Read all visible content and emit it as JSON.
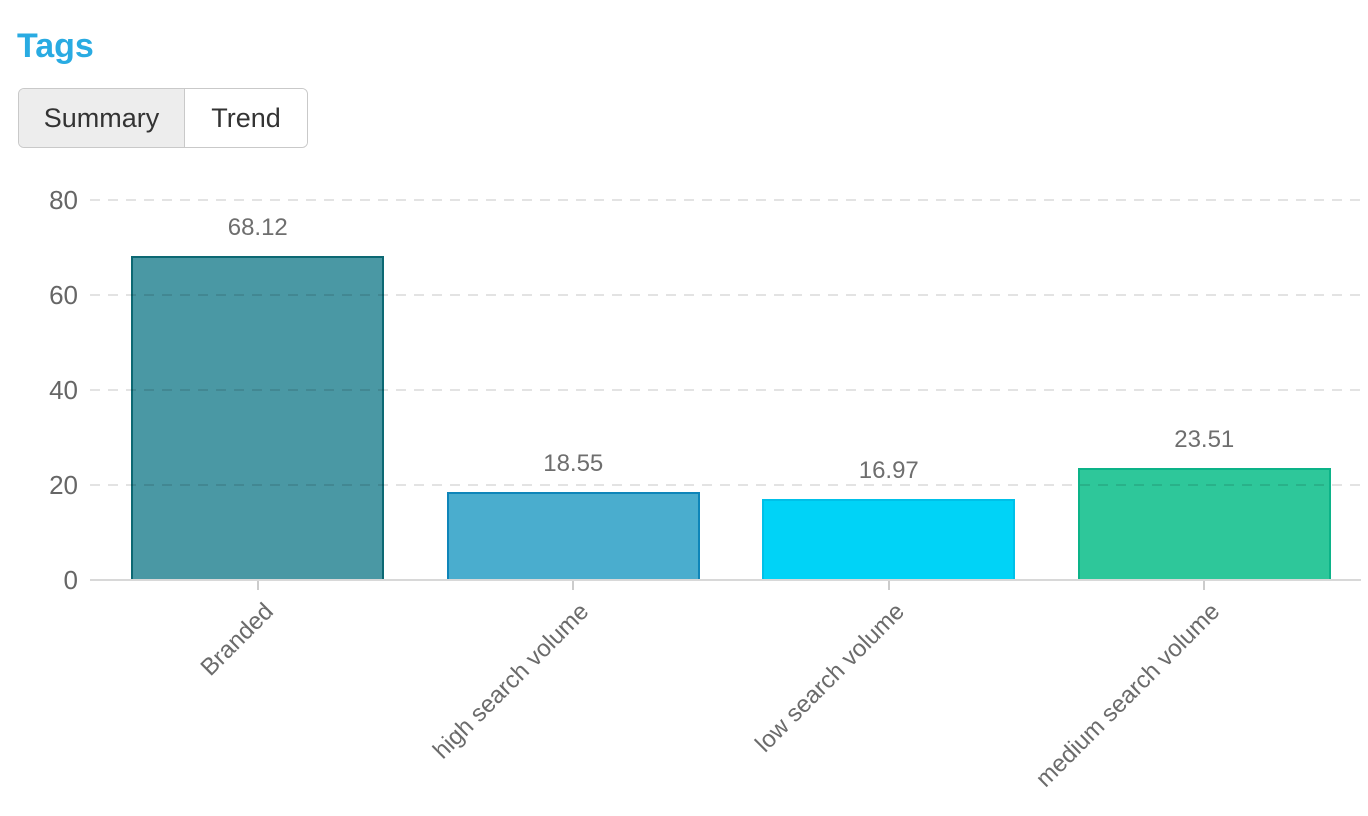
{
  "page": {
    "title": "Tags",
    "title_color": "#29abe2"
  },
  "tabs": [
    {
      "label": "Summary",
      "selected": true
    },
    {
      "label": "Trend",
      "selected": false
    }
  ],
  "chart_data": {
    "type": "bar",
    "categories": [
      "Branded",
      "high search volume",
      "low search volume",
      "medium search volume"
    ],
    "values": [
      68.12,
      18.55,
      16.97,
      23.51
    ],
    "value_labels": [
      "68.12",
      "18.55",
      "16.97",
      "23.51"
    ],
    "bar_colors": [
      "#4a98a4",
      "#4aadce",
      "#00d3f7",
      "#2ec79a"
    ],
    "bar_border_colors": [
      "#0c6873",
      "#0e85b9",
      "#00c0e8",
      "#0cb388"
    ],
    "title": "",
    "xlabel": "",
    "ylabel": "",
    "yticks": [
      0,
      20,
      40,
      60,
      80
    ],
    "ylim": [
      0,
      80
    ],
    "grid": "horizontal-dashed",
    "legend": "none"
  }
}
